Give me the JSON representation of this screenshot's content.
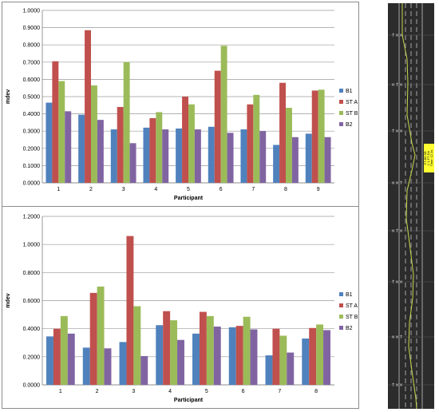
{
  "chart_data": [
    {
      "type": "bar",
      "title": "",
      "xlabel": "Participant",
      "ylabel": "mdev",
      "ylim": [
        0,
        1.0
      ],
      "yticks": [
        "0.0000",
        "0.1000",
        "0.2000",
        "0.3000",
        "0.4000",
        "0.5000",
        "0.6000",
        "0.7000",
        "0.8000",
        "0.9000",
        "1.0000"
      ],
      "categories": [
        "1",
        "2",
        "3",
        "4",
        "5",
        "6",
        "7",
        "8",
        "9"
      ],
      "legend_position": "right",
      "grid": true,
      "series": [
        {
          "name": "B1",
          "color": "#4f81bd",
          "values": [
            0.465,
            0.395,
            0.31,
            0.32,
            0.315,
            0.325,
            0.31,
            0.22,
            0.285
          ]
        },
        {
          "name": "ST A",
          "color": "#c0504d",
          "values": [
            0.705,
            0.885,
            0.44,
            0.375,
            0.5,
            0.65,
            0.455,
            0.58,
            0.535
          ]
        },
        {
          "name": "ST B",
          "color": "#9bbb59",
          "values": [
            0.59,
            0.565,
            0.7,
            0.41,
            0.455,
            0.795,
            0.51,
            0.435,
            0.54
          ]
        },
        {
          "name": "B2",
          "color": "#8064a2",
          "values": [
            0.415,
            0.365,
            0.23,
            0.31,
            0.31,
            0.29,
            0.3,
            0.265,
            0.265
          ]
        }
      ]
    },
    {
      "type": "bar",
      "title": "",
      "xlabel": "Participant",
      "ylabel": "mdev",
      "ylim": [
        0,
        1.2
      ],
      "yticks": [
        "0.0000",
        "0.2000",
        "0.4000",
        "0.6000",
        "0.8000",
        "1.0000",
        "1.2000"
      ],
      "categories": [
        "1",
        "2",
        "3",
        "4",
        "5",
        "6",
        "7",
        "8"
      ],
      "legend_position": "right",
      "grid": true,
      "series": [
        {
          "name": "B1",
          "color": "#4f81bd",
          "values": [
            0.345,
            0.265,
            0.305,
            0.425,
            0.365,
            0.41,
            0.21,
            0.33
          ]
        },
        {
          "name": "ST A",
          "color": "#c0504d",
          "values": [
            0.4,
            0.655,
            1.06,
            0.525,
            0.52,
            0.42,
            0.4,
            0.405
          ]
        },
        {
          "name": "ST B",
          "color": "#9bbb59",
          "values": [
            0.49,
            0.7,
            0.56,
            0.46,
            0.49,
            0.485,
            0.35,
            0.43
          ]
        },
        {
          "name": "B2",
          "color": "#8064a2",
          "values": [
            0.365,
            0.26,
            0.205,
            0.32,
            0.415,
            0.395,
            0.23,
            0.39
          ]
        }
      ]
    }
  ],
  "road_panel": {
    "markers": [
      "↑××",
      "×↑×",
      "↑××",
      "××↑",
      "×↑×",
      "↑××",
      "××↑",
      "↑××"
    ],
    "note_lines": [
      "ST-B6-5B",
      "1.1-FT-DA",
      "Time: 12.3s"
    ],
    "colors": {
      "road": "#2c2c2c",
      "lane": "#d9d9d9",
      "path": "#c8d84a",
      "note": "#ffff33"
    }
  }
}
